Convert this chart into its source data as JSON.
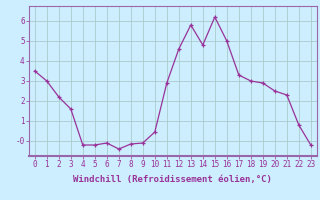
{
  "x": [
    0,
    1,
    2,
    3,
    4,
    5,
    6,
    7,
    8,
    9,
    10,
    11,
    12,
    13,
    14,
    15,
    16,
    17,
    18,
    19,
    20,
    21,
    22,
    23
  ],
  "y": [
    3.5,
    3.0,
    2.2,
    1.6,
    -0.2,
    -0.2,
    -0.1,
    -0.4,
    -0.15,
    -0.1,
    0.45,
    2.9,
    4.6,
    5.8,
    4.8,
    6.2,
    5.0,
    3.3,
    3.0,
    2.9,
    2.5,
    2.3,
    0.8,
    -0.2
  ],
  "line_color": "#993399",
  "marker": "+",
  "marker_size": 3,
  "background_color": "#cceeff",
  "grid_color": "#aacccc",
  "xlabel": "Windchill (Refroidissement éolien,°C)",
  "xlim": [
    -0.5,
    23.5
  ],
  "ylim": [
    -0.75,
    6.75
  ],
  "yticks": [
    0,
    1,
    2,
    3,
    4,
    5,
    6
  ],
  "ytick_labels": [
    "-0",
    "1",
    "2",
    "3",
    "4",
    "5",
    "6"
  ],
  "xticks": [
    0,
    1,
    2,
    3,
    4,
    5,
    6,
    7,
    8,
    9,
    10,
    11,
    12,
    13,
    14,
    15,
    16,
    17,
    18,
    19,
    20,
    21,
    22,
    23
  ],
  "spine_color": "#9966aa",
  "tick_color": "#993399",
  "label_fontsize": 6.5,
  "tick_fontsize": 5.5
}
